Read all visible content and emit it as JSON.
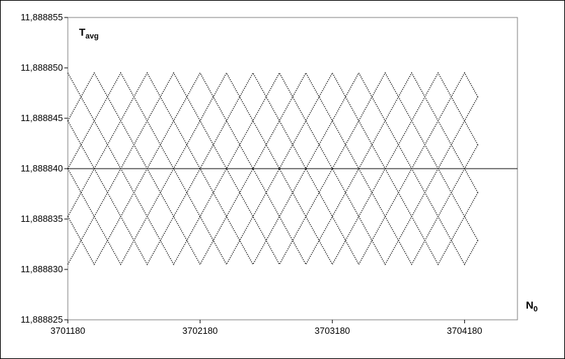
{
  "chart_data": {
    "type": "scatter",
    "title": "",
    "xlabel": {
      "main": "N",
      "sub": "0"
    },
    "ylabel": {
      "main": "T",
      "sub": "avg"
    },
    "xlim": [
      3701180,
      3704580
    ],
    "ylim": [
      11.888825,
      11.888855
    ],
    "x_ticks": [
      {
        "value": 3701180,
        "label": "3701180"
      },
      {
        "value": 3702180,
        "label": "3702180"
      },
      {
        "value": 3703180,
        "label": "3703180"
      },
      {
        "value": 3704180,
        "label": "3704180"
      }
    ],
    "y_ticks": [
      {
        "value": 11.888825,
        "label": "11,888825"
      },
      {
        "value": 11.88883,
        "label": "11,888830"
      },
      {
        "value": 11.888835,
        "label": "11,888835"
      },
      {
        "value": 11.88884,
        "label": "11,888840"
      },
      {
        "value": 11.888845,
        "label": "11,888845"
      },
      {
        "value": 11.88885,
        "label": "11,888850"
      },
      {
        "value": 11.888855,
        "label": "11,888855"
      }
    ],
    "reference_line": {
      "y": 11.88884
    },
    "x_range": [
      3701180,
      3704280
    ],
    "series": [
      {
        "center": 11.88884,
        "amplitude": 9.5e-06,
        "period": 1600,
        "phase": 0.0
      },
      {
        "center": 11.88884,
        "amplitude": 9.5e-06,
        "period": 1600,
        "phase": 0.785
      },
      {
        "center": 11.88884,
        "amplitude": 9.5e-06,
        "period": 1600,
        "phase": 1.571
      },
      {
        "center": 11.88884,
        "amplitude": 9.5e-06,
        "period": 1600,
        "phase": 2.356
      },
      {
        "center": 11.88884,
        "amplitude": 9.5e-06,
        "period": 1600,
        "phase": 3.142
      },
      {
        "center": 11.88884,
        "amplitude": 9.5e-06,
        "period": 1600,
        "phase": 3.927
      },
      {
        "center": 11.88884,
        "amplitude": 9.5e-06,
        "period": 1600,
        "phase": 4.712
      },
      {
        "center": 11.88884,
        "amplitude": 9.5e-06,
        "period": 1600,
        "phase": 5.498
      }
    ],
    "grid": false,
    "legend": "none",
    "colors": {
      "axis": "#000000",
      "points": "#000000"
    }
  }
}
